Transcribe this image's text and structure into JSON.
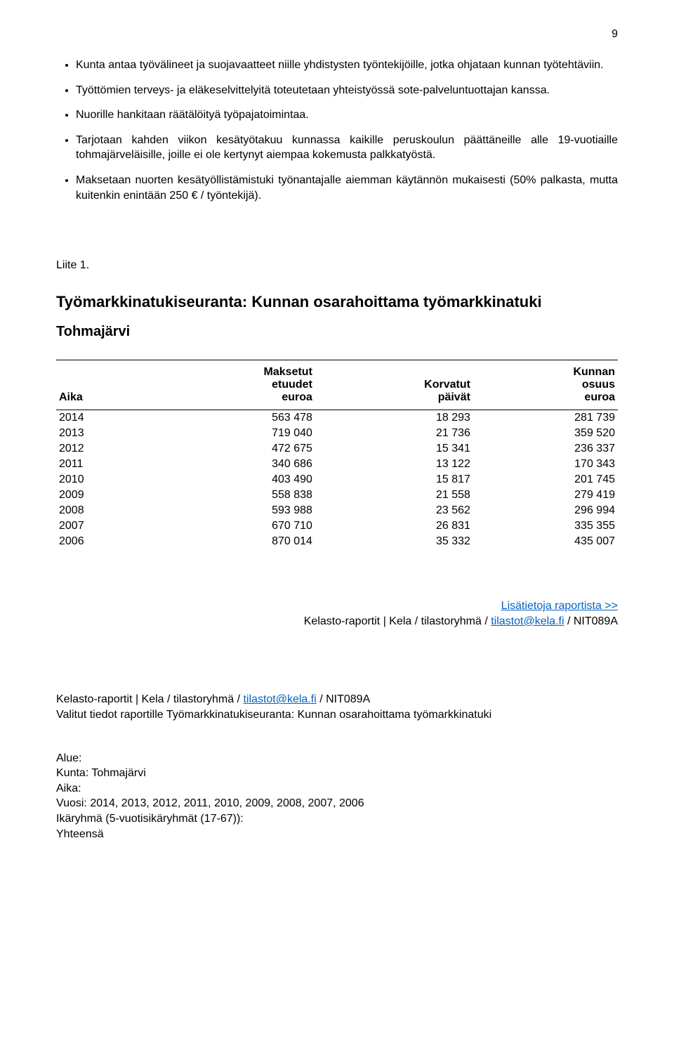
{
  "page_number": "9",
  "bullets": [
    "Kunta antaa työvälineet ja suojavaatteet niille yhdistysten työntekijöille, jotka ohjataan kunnan työtehtäviin.",
    "Työttömien terveys- ja eläkeselvittelyitä toteutetaan yhteistyössä sote-palveluntuottajan kanssa.",
    "Nuorille hankitaan räätälöityä työpajatoimintaa.",
    "Tarjotaan kahden viikon kesätyötakuu kunnassa kaikille peruskoulun päättäneille alle 19-vuotiaille tohmajärveläisille, joille ei ole kertynyt aiempaa kokemusta palkkatyöstä.",
    "Maksetaan nuorten kesätyöllistämistuki työnantajalle aiemman käytännön mukaisesti (50% palkasta, mutta kuitenkin enintään 250 € / työntekijä)."
  ],
  "liite_label": "Liite 1.",
  "heading_title": "Työmarkkinatukiseuranta: Kunnan osarahoittama työmarkkinatuki",
  "heading_subtitle": "Tohmajärvi",
  "table": {
    "headers": {
      "aika": "Aika",
      "etuudet": [
        "Maksetut",
        "etuudet",
        "euroa"
      ],
      "paivat": [
        "Korvatut",
        "päivät"
      ],
      "osuus": [
        "Kunnan",
        "osuus",
        "euroa"
      ]
    },
    "rows": [
      {
        "y": "2014",
        "a": "563 478",
        "b": "18 293",
        "c": "281 739"
      },
      {
        "y": "2013",
        "a": "719 040",
        "b": "21 736",
        "c": "359 520"
      },
      {
        "y": "2012",
        "a": "472 675",
        "b": "15 341",
        "c": "236 337"
      },
      {
        "y": "2011",
        "a": "340 686",
        "b": "13 122",
        "c": "170 343"
      },
      {
        "y": "2010",
        "a": "403 490",
        "b": "15 817",
        "c": "201 745"
      },
      {
        "y": "2009",
        "a": "558 838",
        "b": "21 558",
        "c": "279 419"
      },
      {
        "y": "2008",
        "a": "593 988",
        "b": "23 562",
        "c": "296 994"
      },
      {
        "y": "2007",
        "a": "670 710",
        "b": "26 831",
        "c": "335 355"
      },
      {
        "y": "2006",
        "a": "870 014",
        "b": "35 332",
        "c": "435 007"
      }
    ]
  },
  "info_right": {
    "link_text": "Lisätietoja raportista >>",
    "prefix": "Kelasto-raportit | Kela / tilastoryhmä / ",
    "email": "tilastot@kela.fi",
    "suffix": " / NIT089A"
  },
  "info_left": {
    "prefix": "Kelasto-raportit | Kela / tilastoryhmä / ",
    "email": "tilastot@kela.fi",
    "suffix": " / NIT089A",
    "line2": "Valitut tiedot raportille Työmarkkinatukiseuranta: Kunnan osarahoittama työmarkkinatuki"
  },
  "filters": {
    "alue": "Alue:",
    "kunta": "Kunta: Tohmajärvi",
    "aika": "Aika:",
    "vuosi": "Vuosi: 2014, 2013, 2012, 2011, 2010, 2009, 2008, 2007, 2006",
    "ika": "Ikäryhmä (5-vuotisikäryhmät (17-67)):",
    "yht": "Yhteensä"
  }
}
